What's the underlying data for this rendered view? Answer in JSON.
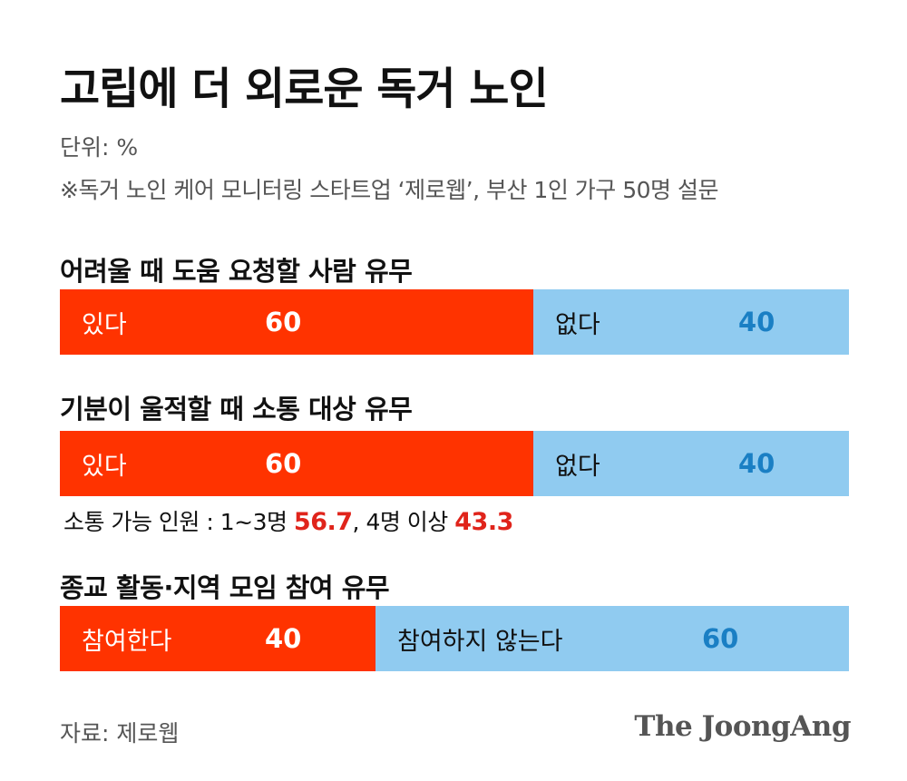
{
  "title": "고립에 더 외로운 독거 노인",
  "unit": "단위: %",
  "source_note": "※독거 노인 케어 모니터링 스타트업 ‘제로웹’, 부산 1인 가구 50명 설문",
  "footer": {
    "source": "자료: 제로웹",
    "brand": "The JoongAng"
  },
  "contact_note": {
    "prefix": "소통 가능 인원 : 1~3명 ",
    "v1": "56.7",
    "mid": ", 4명 이상 ",
    "v2": "43.3"
  },
  "colors": {
    "yes": "#ff3300",
    "no": "#90cbf0",
    "no_value": "#1a7fc4",
    "highlight": "#e0241b"
  },
  "chart_data": [
    {
      "type": "bar",
      "stacked": true,
      "title": "어려울 때 도움 요청할 사람 유무",
      "categories": [
        "있다",
        "없다"
      ],
      "values": [
        60,
        40
      ],
      "value_labels": [
        "60",
        "40"
      ]
    },
    {
      "type": "bar",
      "stacked": true,
      "title": "기분이 울적할 때 소통 대상 유무",
      "categories": [
        "있다",
        "없다"
      ],
      "values": [
        60,
        40
      ],
      "value_labels": [
        "60",
        "40"
      ]
    },
    {
      "type": "bar",
      "stacked": true,
      "title": "종교 활동·지역 모임 참여 유무",
      "categories": [
        "참여한다",
        "참여하지 않는다"
      ],
      "values": [
        40,
        60
      ],
      "value_labels": [
        "40",
        "60"
      ]
    }
  ]
}
